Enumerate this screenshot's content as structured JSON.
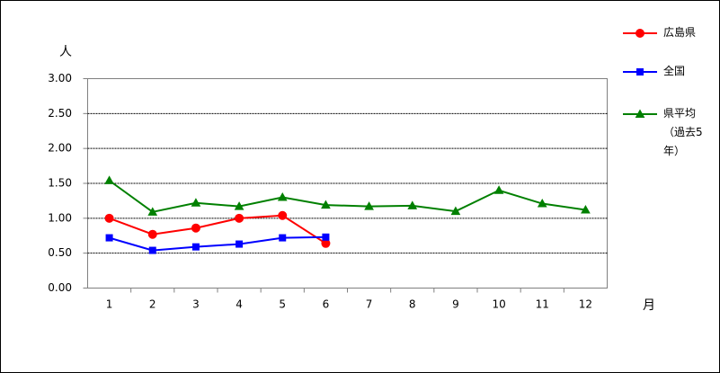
{
  "chart_data": {
    "type": "line",
    "y_label": "人",
    "x_label": "月",
    "categories": [
      "1",
      "2",
      "3",
      "4",
      "5",
      "6",
      "7",
      "8",
      "9",
      "10",
      "11",
      "12"
    ],
    "series": [
      {
        "name": "広島県",
        "color": "#ff0000",
        "marker": "circle",
        "values": [
          1.0,
          0.77,
          0.86,
          1.0,
          1.04,
          0.64,
          null,
          null,
          null,
          null,
          null,
          null
        ]
      },
      {
        "name": "全国",
        "color": "#0000ff",
        "marker": "square",
        "values": [
          0.72,
          0.54,
          0.59,
          0.63,
          0.72,
          0.73,
          null,
          null,
          null,
          null,
          null,
          null
        ]
      },
      {
        "name": "県平均（過去5年）",
        "color": "#008000",
        "marker": "triangle",
        "values": [
          1.54,
          1.09,
          1.22,
          1.17,
          1.3,
          1.19,
          1.17,
          1.18,
          1.1,
          1.4,
          1.21,
          1.12
        ]
      }
    ],
    "ylim": [
      0,
      3
    ],
    "yticks": [
      {
        "value": 0,
        "label": "0.00"
      },
      {
        "value": 0.5,
        "label": "0.50"
      },
      {
        "value": 1,
        "label": "1.00"
      },
      {
        "value": 1.5,
        "label": "1.50"
      },
      {
        "value": 2,
        "label": "2.00"
      },
      {
        "value": 2.5,
        "label": "2.50"
      },
      {
        "value": 3,
        "label": "3.00"
      }
    ],
    "grid": true,
    "legend": "right"
  }
}
